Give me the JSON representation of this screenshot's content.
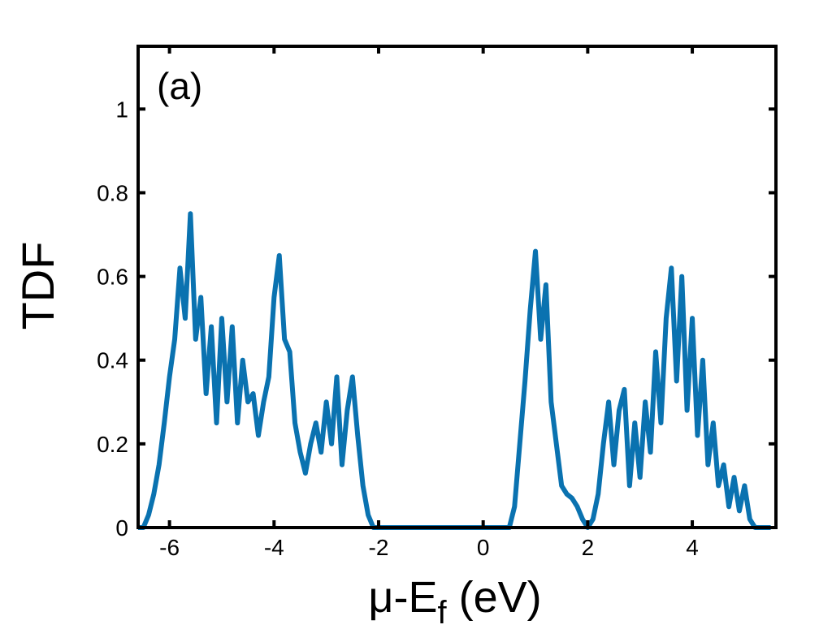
{
  "chart_data": {
    "type": "line",
    "annotation": "(a)",
    "ylabel": "TDF",
    "xlabel": {
      "main": "μ-E",
      "sub": "f",
      "tail": " (eV)"
    },
    "color": "#0a72b0",
    "x": [
      -6.6,
      -6.5,
      -6.4,
      -6.3,
      -6.2,
      -6.1,
      -6.0,
      -5.9,
      -5.8,
      -5.7,
      -5.6,
      -5.5,
      -5.4,
      -5.3,
      -5.2,
      -5.1,
      -5.0,
      -4.9,
      -4.8,
      -4.7,
      -4.6,
      -4.5,
      -4.4,
      -4.3,
      -4.2,
      -4.1,
      -4.0,
      -3.9,
      -3.8,
      -3.7,
      -3.6,
      -3.5,
      -3.4,
      -3.3,
      -3.2,
      -3.1,
      -3.0,
      -2.9,
      -2.8,
      -2.7,
      -2.6,
      -2.5,
      -2.4,
      -2.3,
      -2.2,
      -2.1,
      -2.0,
      -1.9,
      -1.8,
      -1.7,
      -1.6,
      -1.5,
      -1.4,
      -1.3,
      -1.2,
      -1.1,
      -1.0,
      -0.9,
      -0.8,
      -0.7,
      -0.6,
      -0.5,
      -0.4,
      -0.3,
      -0.2,
      -0.1,
      0.0,
      0.1,
      0.2,
      0.3,
      0.4,
      0.5,
      0.6,
      0.7,
      0.8,
      0.9,
      1.0,
      1.1,
      1.2,
      1.3,
      1.4,
      1.5,
      1.6,
      1.7,
      1.8,
      1.9,
      2.0,
      2.1,
      2.2,
      2.3,
      2.4,
      2.5,
      2.6,
      2.7,
      2.8,
      2.9,
      3.0,
      3.1,
      3.2,
      3.3,
      3.4,
      3.5,
      3.6,
      3.7,
      3.8,
      3.9,
      4.0,
      4.1,
      4.2,
      4.3,
      4.4,
      4.5,
      4.6,
      4.7,
      4.8,
      4.9,
      5.0,
      5.1,
      5.2,
      5.3,
      5.4,
      5.5
    ],
    "values": [
      0,
      0,
      0.03,
      0.08,
      0.15,
      0.25,
      0.36,
      0.45,
      0.62,
      0.5,
      0.75,
      0.45,
      0.55,
      0.32,
      0.48,
      0.25,
      0.5,
      0.3,
      0.48,
      0.25,
      0.4,
      0.3,
      0.32,
      0.22,
      0.3,
      0.36,
      0.55,
      0.65,
      0.45,
      0.42,
      0.25,
      0.18,
      0.13,
      0.2,
      0.25,
      0.18,
      0.3,
      0.2,
      0.36,
      0.15,
      0.28,
      0.36,
      0.22,
      0.1,
      0.03,
      0,
      0,
      0,
      0,
      0,
      0,
      0,
      0,
      0,
      0,
      0,
      0,
      0,
      0,
      0,
      0,
      0,
      0,
      0,
      0,
      0,
      0,
      0,
      0,
      0,
      0,
      0,
      0.05,
      0.2,
      0.35,
      0.52,
      0.66,
      0.45,
      0.58,
      0.3,
      0.2,
      0.1,
      0.08,
      0.07,
      0.05,
      0.02,
      0,
      0.02,
      0.08,
      0.2,
      0.3,
      0.15,
      0.28,
      0.33,
      0.1,
      0.25,
      0.12,
      0.3,
      0.18,
      0.42,
      0.25,
      0.5,
      0.62,
      0.35,
      0.6,
      0.28,
      0.5,
      0.22,
      0.4,
      0.15,
      0.25,
      0.1,
      0.15,
      0.05,
      0.12,
      0.04,
      0.1,
      0.02,
      0,
      0,
      0,
      0
    ],
    "xlim": [
      -6.6,
      5.6
    ],
    "ylim": [
      0,
      1.15
    ],
    "xticks": [
      -6,
      -4,
      -2,
      0,
      2,
      4
    ],
    "yticks": [
      0,
      0.2,
      0.4,
      0.6,
      0.8,
      1
    ]
  }
}
